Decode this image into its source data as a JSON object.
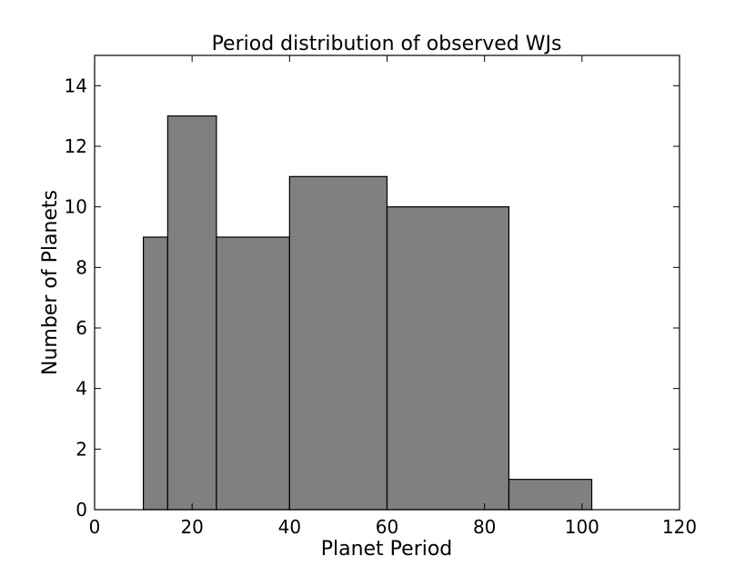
{
  "chart_data": {
    "type": "bar",
    "title": "Period distribution of observed WJs",
    "xlabel": "Planet Period",
    "ylabel": "Number of Planets",
    "xlim": [
      0,
      120
    ],
    "ylim": [
      0,
      15
    ],
    "xticks": [
      "0",
      "20",
      "40",
      "60",
      "80",
      "100",
      "120"
    ],
    "yticks": [
      "0",
      "2",
      "4",
      "6",
      "8",
      "10",
      "12",
      "14"
    ],
    "grid": false,
    "bar_color": "#808080",
    "bins": [
      {
        "x0": 10,
        "x1": 15,
        "value": 9
      },
      {
        "x0": 15,
        "x1": 25,
        "value": 13
      },
      {
        "x0": 25,
        "x1": 40,
        "value": 9
      },
      {
        "x0": 40,
        "x1": 60,
        "value": 11
      },
      {
        "x0": 60,
        "x1": 85,
        "value": 10
      },
      {
        "x0": 85,
        "x1": 102,
        "value": 1
      }
    ]
  }
}
